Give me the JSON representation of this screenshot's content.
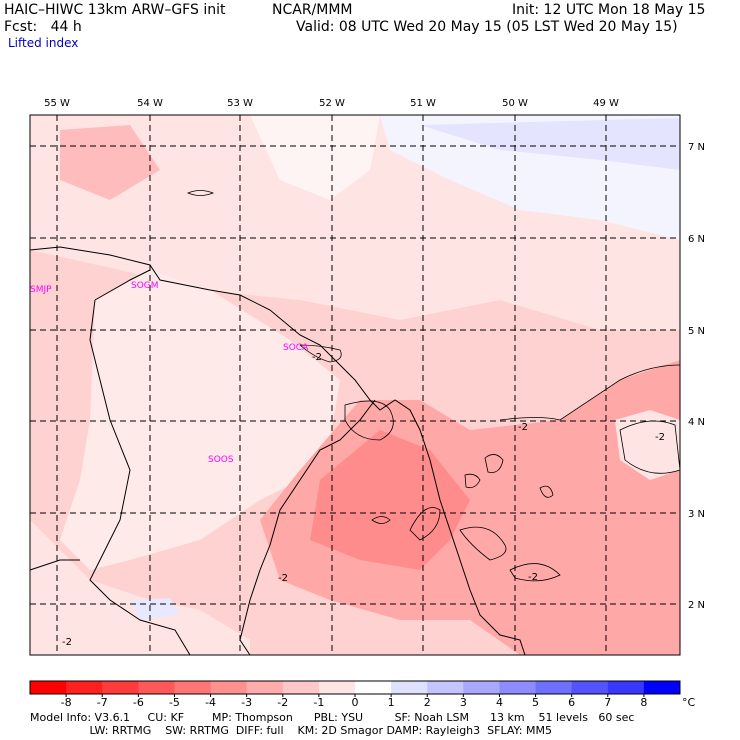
{
  "header": {
    "model": "HAIC–HIWC 13km ARW–GFS init",
    "org": "NCAR/MMM",
    "init": "Init: 12 UTC Mon 18 May 15",
    "fcst": "Fcst:   44 h",
    "valid": "Valid: 08 UTC Wed 20 May 15 (05 LST Wed 20 May 15)",
    "field": "Lifted index"
  },
  "map": {
    "lon_labels": [
      "55 W",
      "54 W",
      "53 W",
      "52 W",
      "51 W",
      "50 W",
      "49 W"
    ],
    "lat_labels": [
      "7 N",
      "6 N",
      "5 N",
      "4 N",
      "3 N",
      "2 N"
    ],
    "stations": [
      "SMJP",
      "SOGM",
      "SOCA",
      "SOOS"
    ],
    "contour_labels": [
      "-2",
      "-2",
      "-2",
      "-2",
      "-2",
      "-2"
    ],
    "colors": {
      "station": "#ff00ff",
      "contour": "#000000",
      "grid": "#000000"
    }
  },
  "colorbar": {
    "ticks": [
      "-8",
      "-7",
      "-6",
      "-5",
      "-4",
      "-3",
      "-2",
      "-1",
      "0",
      "1",
      "2",
      "3",
      "4",
      "5",
      "6",
      "7",
      "8"
    ],
    "unit": "°C",
    "colors": [
      "#ff0000",
      "#ff2020",
      "#ff3c3c",
      "#ff5858",
      "#ff7474",
      "#ff9090",
      "#ffacac",
      "#ffc8c8",
      "#ffe4e4",
      "#ffffff",
      "#e0e0ff",
      "#c4c4ff",
      "#a8a8ff",
      "#8c8cff",
      "#7070ff",
      "#5454ff",
      "#3838ff",
      "#0000ff"
    ]
  },
  "footer": {
    "line1": "Model Info: V3.6.1     CU: KF        MP: Thompson      PBL: YSU         SF: Noah LSM      13 km    51 levels   60 sec",
    "line2": "                 LW: RRTMG    SW: RRTMG  DIFF: full    KM: 2D Smagor DAMP: Rayleigh3  SFLAY: MM5"
  }
}
